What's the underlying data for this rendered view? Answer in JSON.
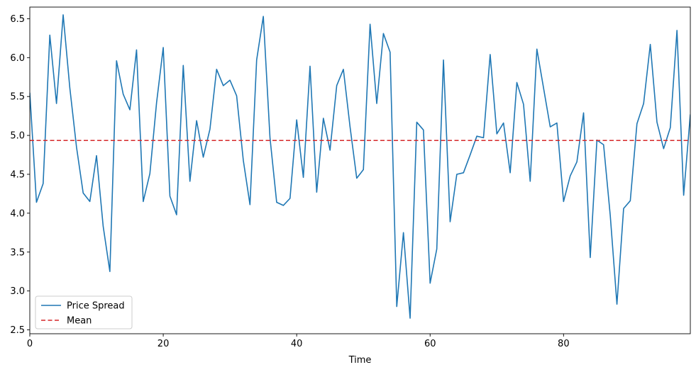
{
  "chart_data": {
    "type": "line",
    "title": "",
    "xlabel": "Time",
    "ylabel": "",
    "xlim": [
      0,
      99
    ],
    "ylim": [
      2.45,
      6.65
    ],
    "x_ticks": [
      0,
      20,
      40,
      60,
      80
    ],
    "y_ticks": [
      2.5,
      3.0,
      3.5,
      4.0,
      4.5,
      5.0,
      5.5,
      6.0,
      6.5
    ],
    "x_tick_labels": [
      "0",
      "20",
      "40",
      "60",
      "80"
    ],
    "y_tick_labels": [
      "2.5",
      "3.0",
      "3.5",
      "4.0",
      "4.5",
      "5.0",
      "5.5",
      "6.0",
      "6.5"
    ],
    "grid": false,
    "legend_position": "lower-left",
    "series": [
      {
        "name": "Price Spread",
        "color": "#1f77b4",
        "style": "solid",
        "x": [
          0,
          1,
          2,
          3,
          4,
          5,
          6,
          7,
          8,
          9,
          10,
          11,
          12,
          13,
          14,
          15,
          16,
          17,
          18,
          19,
          20,
          21,
          22,
          23,
          24,
          25,
          26,
          27,
          28,
          29,
          30,
          31,
          32,
          33,
          34,
          35,
          36,
          37,
          38,
          39,
          40,
          41,
          42,
          43,
          44,
          45,
          46,
          47,
          48,
          49,
          50,
          51,
          52,
          53,
          54,
          55,
          56,
          57,
          58,
          59,
          60,
          61,
          62,
          63,
          64,
          65,
          66,
          67,
          68,
          69,
          70,
          71,
          72,
          73,
          74,
          75,
          76,
          77,
          78,
          79,
          80,
          81,
          82,
          83,
          84,
          85,
          86,
          87,
          88,
          89,
          90,
          91,
          92,
          93,
          94,
          95,
          96,
          97,
          98,
          99
        ],
        "y": [
          5.55,
          4.14,
          4.38,
          6.29,
          5.41,
          6.55,
          5.61,
          4.85,
          4.26,
          4.15,
          4.74,
          3.83,
          3.25,
          5.96,
          5.53,
          5.33,
          6.1,
          4.15,
          4.51,
          5.42,
          6.13,
          4.22,
          3.98,
          5.9,
          4.41,
          5.19,
          4.72,
          5.08,
          5.85,
          5.64,
          5.71,
          5.51,
          4.68,
          4.11,
          5.97,
          6.53,
          4.97,
          4.14,
          4.1,
          4.19,
          5.2,
          4.46,
          5.89,
          4.27,
          5.22,
          4.81,
          5.64,
          5.85,
          5.11,
          4.45,
          4.56,
          6.43,
          5.41,
          6.31,
          6.07,
          2.8,
          3.75,
          2.65,
          5.17,
          5.07,
          3.1,
          3.54,
          5.97,
          3.89,
          4.5,
          4.52,
          4.75,
          4.99,
          4.97,
          6.04,
          5.02,
          5.16,
          4.52,
          5.68,
          5.4,
          4.41,
          6.11,
          5.61,
          5.11,
          5.16,
          4.15,
          4.48,
          4.66,
          5.29,
          3.43,
          4.94,
          4.88,
          3.97,
          2.83,
          4.06,
          4.16,
          5.15,
          5.41,
          6.17,
          5.17,
          4.83,
          5.1,
          6.35,
          4.23,
          5.27
        ]
      },
      {
        "name": "Mean",
        "color": "#d62728",
        "style": "dashed",
        "y_value": 4.935
      }
    ]
  }
}
